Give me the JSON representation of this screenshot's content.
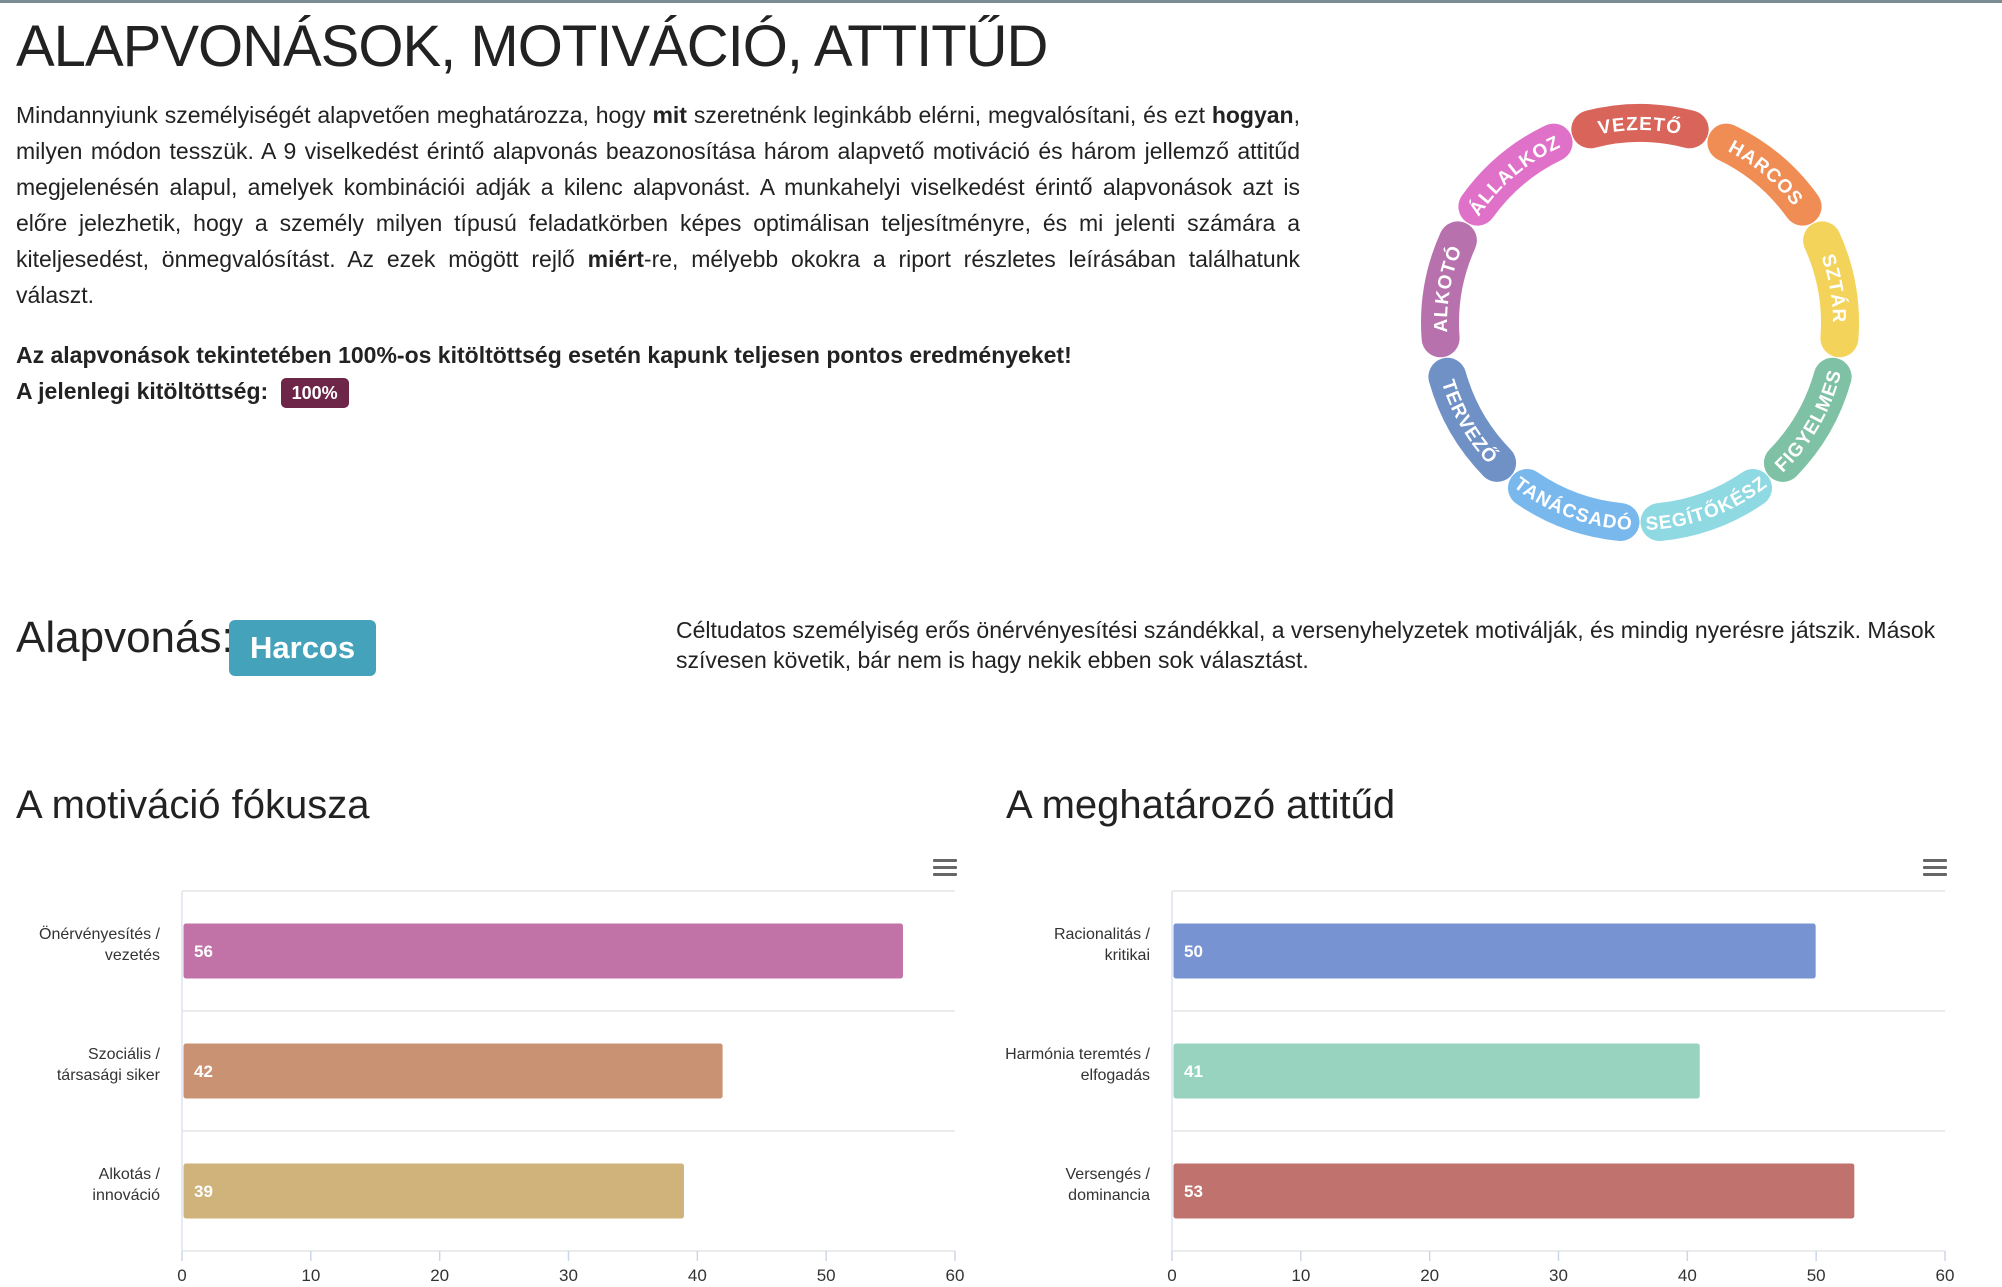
{
  "header": {
    "title": "ALAPVONÁSOK, MOTIVÁCIÓ, ATTITŰD"
  },
  "intro": {
    "p1": "Mindannyiunk személyiségét alapvetően meghatározza, hogy ",
    "b1": "mit",
    "p2": " szeretnénk leginkább elérni, megvalósítani, és ezt ",
    "b2": "hogyan",
    "p3": ", milyen módon tesszük. A 9 viselkedést érintő alapvonás beazonosítása három alapvető motiváció és három jellemző attitűd megjelenésén alapul, amelyek kombinációi adják a kilenc alapvonást. A munkahelyi viselkedést érintő alapvonások azt is előre jelezhetik, hogy a személy milyen típusú feladatkörben képes optimálisan teljesítményre, és mi jelenti számára a kiteljesedést, önmegvalósítást. Az ezek mögött rejlő ",
    "b3": "miért",
    "p4": "-re, mélyebb okokra a riport részletes leírásában találhatunk választ."
  },
  "note": {
    "line1": "Az alapvonások tekintetében 100%-os kitöltöttség esetén kapunk teljesen pontos eredményeket!",
    "line2": "A jelenlegi kitöltöttség:",
    "badge": "100%"
  },
  "wheel": {
    "segments": [
      {
        "label": "VEZETŐ",
        "color": "#d9655a"
      },
      {
        "label": "HARCOS",
        "color": "#ef8d55"
      },
      {
        "label": "SZTÁR",
        "color": "#f3d35a"
      },
      {
        "label": "FIGYELMES",
        "color": "#7fc1a5"
      },
      {
        "label": "SEGÍTŐKÉSZ",
        "color": "#8fd9e3"
      },
      {
        "label": "TANÁCSADÓ",
        "color": "#79b8ed"
      },
      {
        "label": "TERVEZŐ",
        "color": "#7091c6"
      },
      {
        "label": "ALKOTÓ",
        "color": "#b771ad"
      },
      {
        "label": "VÁLLALKOZÓ",
        "color": "#e071c9"
      }
    ]
  },
  "alapvonas": {
    "label": "Alapvonás:",
    "value": "Harcos",
    "description": "Céltudatos személyiség erős önérvényesítési szándékkal, a versenyhelyzetek motiválják, és mindig nyerésre játszik. Mások szívesen követik, bár nem is hagy nekik ebben sok választást."
  },
  "charts": {
    "motivation_title": "A motiváció fókusza",
    "attitude_title": "A meghatározó attitűd"
  },
  "chart_data": [
    {
      "type": "bar",
      "orientation": "horizontal",
      "title": "A motiváció fókusza",
      "categories": [
        [
          "Önérvényesítés /",
          "vezetés"
        ],
        [
          "Szociális /",
          "társasági siker"
        ],
        [
          "Alkotás /",
          "innováció"
        ]
      ],
      "values": [
        56,
        42,
        39
      ],
      "colors": [
        "#c172a6",
        "#c99273",
        "#d0b27b"
      ],
      "xlim": [
        0,
        60
      ],
      "xticks": [
        0,
        10,
        20,
        30,
        40,
        50,
        60
      ],
      "data_labels": true,
      "grid": true
    },
    {
      "type": "bar",
      "orientation": "horizontal",
      "title": "A meghatározó attitűd",
      "categories": [
        [
          "Racionalitás /",
          "kritikai"
        ],
        [
          "Harmónia teremtés /",
          "elfogadás"
        ],
        [
          "Versengés /",
          "dominancia"
        ]
      ],
      "values": [
        50,
        41,
        53
      ],
      "colors": [
        "#7793d2",
        "#97d3be",
        "#c0736e"
      ],
      "xlim": [
        0,
        60
      ],
      "xticks": [
        0,
        10,
        20,
        30,
        40,
        50,
        60
      ],
      "data_labels": true,
      "grid": true
    }
  ]
}
